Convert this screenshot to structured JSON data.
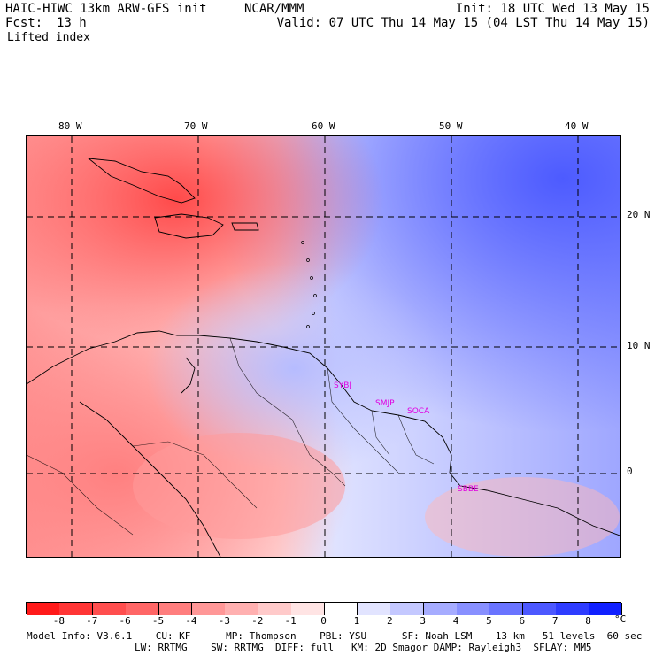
{
  "header": {
    "model_title": "HAIC-HIWC 13km ARW-GFS init",
    "org": "NCAR/MMM",
    "fcst_label": "Fcst:",
    "fcst_value": "13 h",
    "field_name": "Lifted index",
    "init": "Init: 18 UTC Wed 13 May 15",
    "valid": "Valid: 07 UTC Thu 14 May 15 (04 LST Thu 14 May 15)"
  },
  "map": {
    "lon_labels": [
      "80 W",
      "70 W",
      "60 W",
      "50 W",
      "40 W"
    ],
    "lat_labels": [
      "20 N",
      "10 N",
      "0"
    ],
    "stations": [
      "SYBJ",
      "SMJP",
      "SOCA",
      "SBBE"
    ]
  },
  "colorbar": {
    "labels": [
      "-8",
      "-7",
      "-6",
      "-5",
      "-4",
      "-3",
      "-2",
      "-1",
      "0",
      "1",
      "2",
      "3",
      "4",
      "5",
      "6",
      "7",
      "8"
    ],
    "unit": "°C",
    "colors": [
      "#ff1a1a",
      "#ff3535",
      "#ff4e4e",
      "#ff6666",
      "#ff7e7e",
      "#ff9797",
      "#ffb0b0",
      "#ffcaca",
      "#ffe4e4",
      "#ffffff",
      "#e2e4ff",
      "#c4c8ff",
      "#a6acff",
      "#8890ff",
      "#6a74ff",
      "#4c58ff",
      "#2e3cff",
      "#1020ff"
    ]
  },
  "footer": {
    "line1": "Model Info: V3.6.1    CU: KF      MP: Thompson    PBL: YSU      SF: Noah LSM    13 km   51 levels  60 sec",
    "line2": "LW: RRTMG    SW: RRTMG  DIFF: full   KM: 2D Smagor DAMP: Rayleigh3  SFLAY: MM5"
  }
}
